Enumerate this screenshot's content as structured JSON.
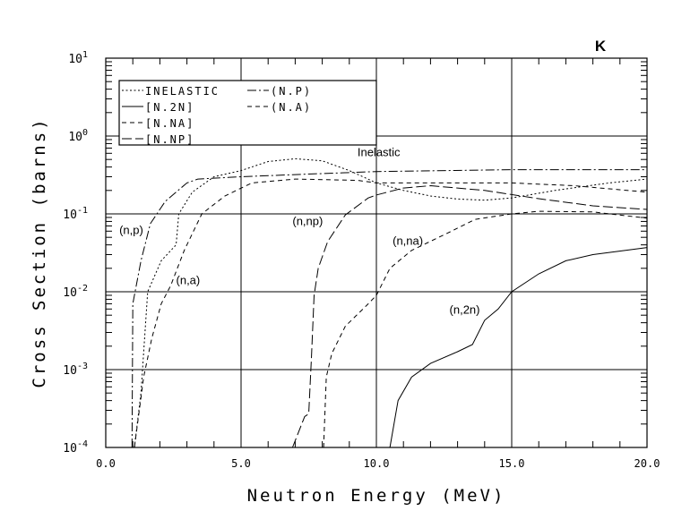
{
  "chart_data": {
    "type": "line",
    "title": "K",
    "xlabel": "Neutron Energy (MeV)",
    "ylabel": "Cross Section (barns)",
    "xlim": [
      0,
      20
    ],
    "ylim": [
      0.0001,
      10
    ],
    "yscale": "log",
    "grid": true,
    "legend_placement": "top-left",
    "x_tick_labels": [
      "0.0",
      "5.0",
      "10.0",
      "15.0",
      "20.0"
    ],
    "x_ticks": [
      0,
      5,
      10,
      15,
      20
    ],
    "y_ticks": [
      {
        "base": "10",
        "exp": "1",
        "value": 10
      },
      {
        "base": "10",
        "exp": "0",
        "value": 1
      },
      {
        "base": "10",
        "exp": "-1",
        "value": 0.1
      },
      {
        "base": "10",
        "exp": "-2",
        "value": 0.01
      },
      {
        "base": "10",
        "exp": "-3",
        "value": 0.001
      },
      {
        "base": "10",
        "exp": "-4",
        "value": 0.0001
      }
    ],
    "series": [
      {
        "name": "INELASTIC",
        "style": "dotted",
        "points": [
          [
            1.06,
            0.0001
          ],
          [
            1.3,
            0.0005
          ],
          [
            1.55,
            0.01
          ],
          [
            2.05,
            0.025
          ],
          [
            2.6,
            0.04
          ],
          [
            2.7,
            0.1
          ],
          [
            3.2,
            0.19
          ],
          [
            4.0,
            0.3
          ],
          [
            5,
            0.36
          ],
          [
            6,
            0.47
          ],
          [
            7,
            0.51
          ],
          [
            8,
            0.48
          ],
          [
            9,
            0.36
          ],
          [
            10,
            0.25
          ],
          [
            11,
            0.2
          ],
          [
            12,
            0.17
          ],
          [
            13,
            0.155
          ],
          [
            14,
            0.15
          ],
          [
            15,
            0.16
          ],
          [
            16.6,
            0.2
          ],
          [
            18.6,
            0.25
          ],
          [
            20,
            0.28
          ]
        ]
      },
      {
        "name": "[N.2N]",
        "style": "solid",
        "points": [
          [
            10.5,
            0.0001
          ],
          [
            10.8,
            0.0004
          ],
          [
            11.3,
            0.0008
          ],
          [
            12,
            0.0012
          ],
          [
            13,
            0.0017
          ],
          [
            13.55,
            0.0021
          ],
          [
            14,
            0.0043
          ],
          [
            14.5,
            0.006
          ],
          [
            15,
            0.01
          ],
          [
            16,
            0.017
          ],
          [
            17,
            0.025
          ],
          [
            18,
            0.03
          ],
          [
            20,
            0.037
          ]
        ]
      },
      {
        "name": "[N.NA]",
        "style": "dashed",
        "points": [
          [
            8.05,
            0.0001
          ],
          [
            8.15,
            0.0008
          ],
          [
            8.35,
            0.0016
          ],
          [
            8.85,
            0.0036
          ],
          [
            9.7,
            0.007
          ],
          [
            10,
            0.009
          ],
          [
            10.5,
            0.02
          ],
          [
            11.3,
            0.034
          ],
          [
            12.65,
            0.057
          ],
          [
            13.65,
            0.085
          ],
          [
            15,
            0.1
          ],
          [
            16,
            0.108
          ],
          [
            18,
            0.106
          ],
          [
            20,
            0.088
          ]
        ]
      },
      {
        "name": "[N.NP]",
        "style": "longdash",
        "points": [
          [
            6.9,
            0.0001
          ],
          [
            7.35,
            0.00025
          ],
          [
            7.5,
            0.00027
          ],
          [
            7.6,
            0.0014
          ],
          [
            7.7,
            0.009
          ],
          [
            7.85,
            0.02
          ],
          [
            8.2,
            0.044
          ],
          [
            8.85,
            0.097
          ],
          [
            9.7,
            0.16
          ],
          [
            10,
            0.175
          ],
          [
            11,
            0.215
          ],
          [
            12,
            0.23
          ],
          [
            14,
            0.2
          ],
          [
            16,
            0.157
          ],
          [
            18,
            0.127
          ],
          [
            20,
            0.114
          ]
        ]
      },
      {
        "name": "(N.P)",
        "style": "dashdot",
        "points": [
          [
            0.97,
            0.0001
          ],
          [
            1.0,
            0.007
          ],
          [
            1.3,
            0.025
          ],
          [
            1.65,
            0.075
          ],
          [
            2.2,
            0.145
          ],
          [
            3.0,
            0.25
          ],
          [
            3.4,
            0.28
          ],
          [
            5,
            0.3
          ],
          [
            7,
            0.32
          ],
          [
            10,
            0.35
          ],
          [
            15,
            0.37
          ],
          [
            20,
            0.37
          ]
        ]
      },
      {
        "name": "(N.A)",
        "style": "dashed",
        "points": [
          [
            1.06,
            0.0001
          ],
          [
            1.4,
            0.0008
          ],
          [
            1.7,
            0.0025
          ],
          [
            2.05,
            0.007
          ],
          [
            2.4,
            0.012
          ],
          [
            2.9,
            0.034
          ],
          [
            3.55,
            0.1
          ],
          [
            4.4,
            0.17
          ],
          [
            5.4,
            0.25
          ],
          [
            7,
            0.28
          ],
          [
            9.3,
            0.27
          ],
          [
            10,
            0.25
          ],
          [
            12,
            0.25
          ],
          [
            15,
            0.25
          ],
          [
            17.3,
            0.23
          ],
          [
            20,
            0.19
          ]
        ]
      }
    ],
    "annotations": [
      {
        "text": "Inelastic",
        "x": 9.3,
        "y": 0.55
      },
      {
        "text": "(n,p)",
        "x": 0.5,
        "y": 0.055
      },
      {
        "text": "(n,np)",
        "x": 6.9,
        "y": 0.072
      },
      {
        "text": "(n,na)",
        "x": 10.6,
        "y": 0.04
      },
      {
        "text": "(n,a)",
        "x": 2.6,
        "y": 0.0125
      },
      {
        "text": "(n,2n)",
        "x": 12.7,
        "y": 0.0052
      }
    ]
  }
}
